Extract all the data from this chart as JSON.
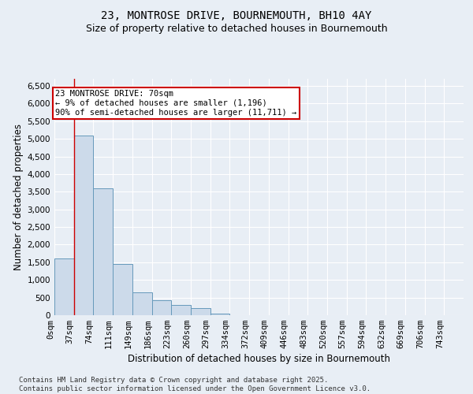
{
  "title_line1": "23, MONTROSE DRIVE, BOURNEMOUTH, BH10 4AY",
  "title_line2": "Size of property relative to detached houses in Bournemouth",
  "xlabel": "Distribution of detached houses by size in Bournemouth",
  "ylabel": "Number of detached properties",
  "categories": [
    "0sqm",
    "37sqm",
    "74sqm",
    "111sqm",
    "149sqm",
    "186sqm",
    "223sqm",
    "260sqm",
    "297sqm",
    "334sqm",
    "372sqm",
    "409sqm",
    "446sqm",
    "483sqm",
    "520sqm",
    "557sqm",
    "594sqm",
    "632sqm",
    "669sqm",
    "706sqm",
    "743sqm"
  ],
  "bar_heights": [
    1600,
    5100,
    3600,
    1450,
    650,
    430,
    290,
    200,
    55,
    10,
    0,
    0,
    0,
    0,
    0,
    0,
    0,
    0,
    0,
    0,
    0
  ],
  "bar_color": "#ccdaea",
  "bar_edge_color": "#6699bb",
  "vline_color": "#cc0000",
  "vline_x": 1.0,
  "annotation_text": "23 MONTROSE DRIVE: 70sqm\n← 9% of detached houses are smaller (1,196)\n90% of semi-detached houses are larger (11,711) →",
  "annotation_box_color": "white",
  "annotation_box_edge_color": "#cc0000",
  "ylim": [
    0,
    6700
  ],
  "yticks": [
    0,
    500,
    1000,
    1500,
    2000,
    2500,
    3000,
    3500,
    4000,
    4500,
    5000,
    5500,
    6000,
    6500
  ],
  "footer_text": "Contains HM Land Registry data © Crown copyright and database right 2025.\nContains public sector information licensed under the Open Government Licence v3.0.",
  "background_color": "#e8eef5",
  "plot_bg_color": "#e8eef5",
  "grid_color": "white",
  "title_fontsize": 10,
  "subtitle_fontsize": 9,
  "axis_label_fontsize": 8.5,
  "tick_fontsize": 7.5,
  "annotation_fontsize": 7.5,
  "footer_fontsize": 6.5
}
